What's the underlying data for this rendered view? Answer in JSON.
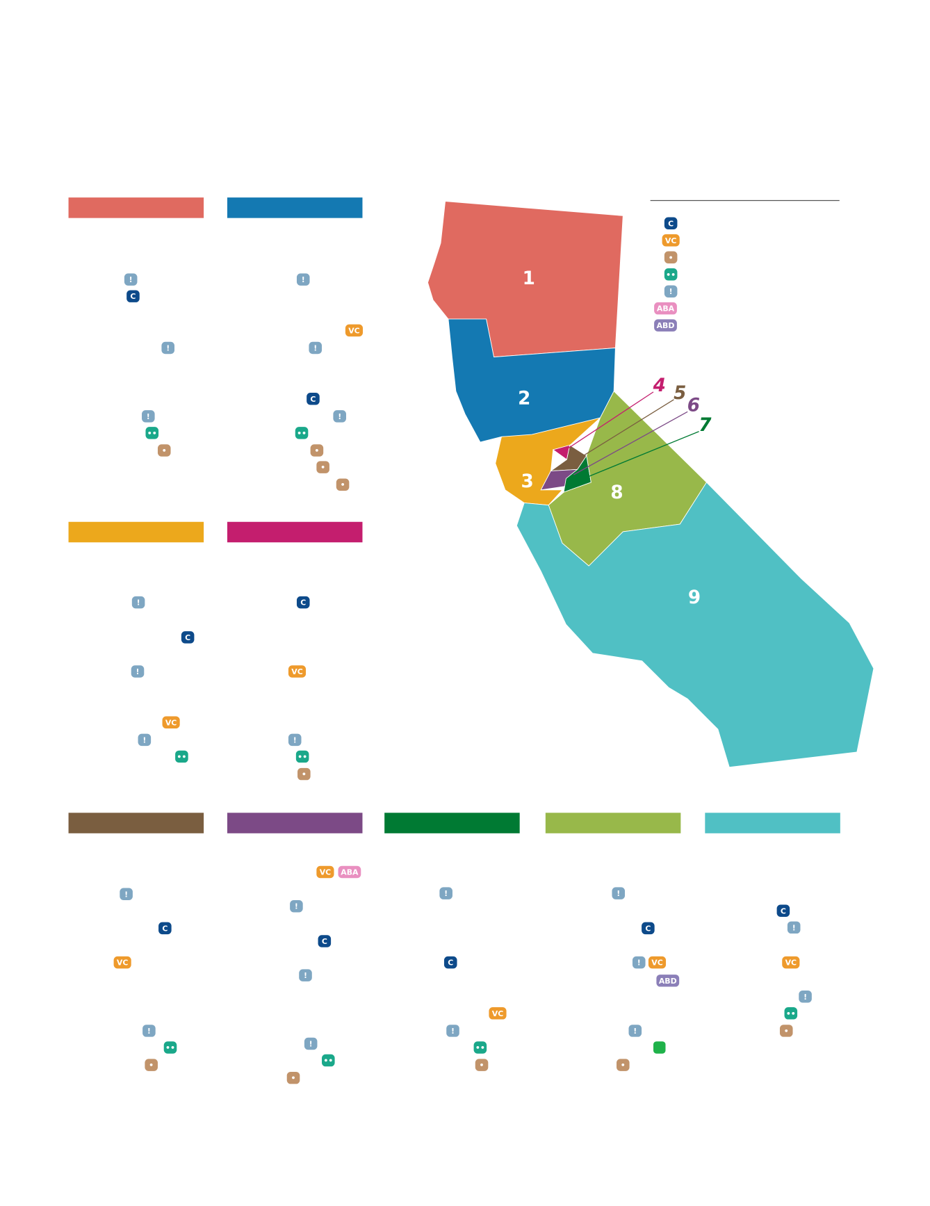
{
  "legend": {
    "badges": [
      {
        "label": "C",
        "color": "#0d4a8a"
      },
      {
        "label": "VC",
        "color": "#ee9a2c"
      },
      {
        "label": "•",
        "color": "#c1936a"
      },
      {
        "label": "••",
        "color": "#1aa88a"
      },
      {
        "label": "!",
        "color": "#7ea6c2"
      },
      {
        "label": "ABA",
        "color": "#e98fc0"
      },
      {
        "label": "ABD",
        "color": "#8b7fb8"
      }
    ]
  },
  "regions": [
    {
      "label": "1",
      "color": "#e06a60"
    },
    {
      "label": "2",
      "color": "#1479b2"
    },
    {
      "label": "3",
      "color": "#eca81c"
    },
    {
      "label": "4",
      "color": "#c41e6e"
    },
    {
      "label": "5",
      "color": "#7a5e40"
    },
    {
      "label": "6",
      "color": "#7c4a86"
    },
    {
      "label": "7",
      "color": "#007a33"
    },
    {
      "label": "8",
      "color": "#98b84a"
    },
    {
      "label": "9",
      "color": "#50c0c4"
    }
  ],
  "panels": [
    {
      "badges": [
        "!",
        "C",
        "!",
        "!",
        "••",
        "•"
      ]
    },
    {
      "badges": [
        "!",
        "VC",
        "!",
        "C",
        "!",
        "••",
        "•",
        "•",
        "•"
      ]
    },
    {
      "badges": [
        "!",
        "C",
        "!",
        "VC",
        "!",
        "••"
      ]
    },
    {
      "badges": [
        "C",
        "VC",
        "!",
        "••",
        "•"
      ]
    },
    {
      "badges": [
        "!",
        "C",
        "VC",
        "!",
        "••",
        "•"
      ]
    },
    {
      "badges": [
        "VC",
        "ABA",
        "!",
        "C",
        "!",
        "!",
        "••",
        "•"
      ]
    },
    {
      "badges": [
        "!",
        "C",
        "VC",
        "!",
        "••",
        "•"
      ]
    },
    {
      "badges": [
        "!",
        "C",
        "!",
        "VC",
        "ABD",
        "!",
        "•"
      ]
    },
    {
      "badges": [
        "C",
        "!",
        "VC",
        "!",
        "••",
        "•"
      ]
    }
  ]
}
